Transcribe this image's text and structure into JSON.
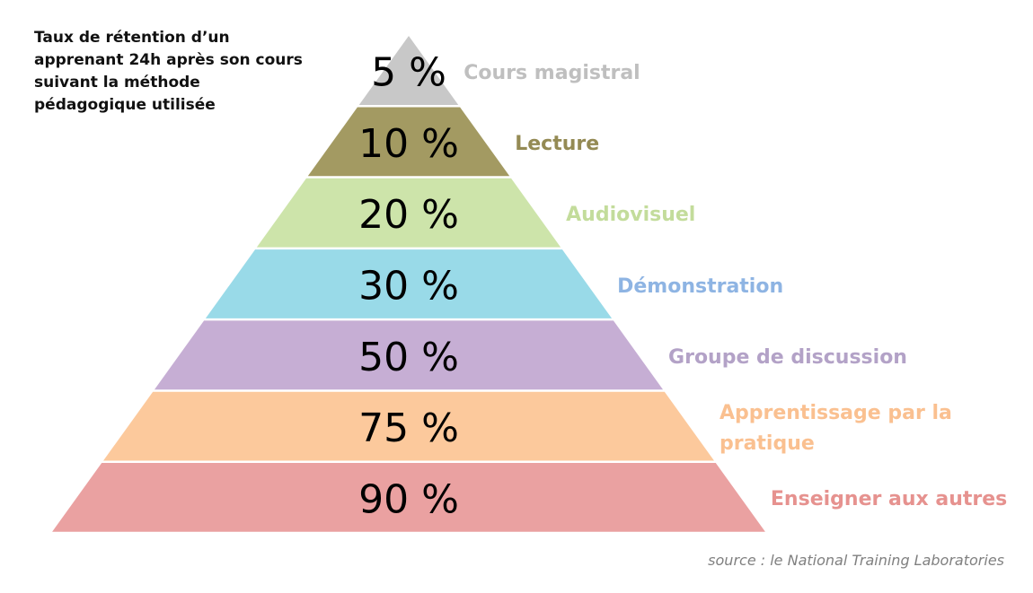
{
  "header": {
    "title": "Taux de rétention d’un apprenant 24h après son cours suivant la méthode pédagogique utilisée"
  },
  "levels": [
    {
      "value": "5 %",
      "label": "Cours magistral",
      "color": "#c8c8c8",
      "label_color": "#bfbfbf"
    },
    {
      "value": "10 %",
      "label": "Lecture",
      "color": "#a39a62",
      "label_color": "#948a54"
    },
    {
      "value": "20 %",
      "label": "Audiovisuel",
      "color": "#cde4aa",
      "label_color": "#c3dc9b"
    },
    {
      "value": "30 %",
      "label": "Démonstration",
      "color": "#99dae8",
      "label_color": "#8eb4e3"
    },
    {
      "value": "50 %",
      "label": "Groupe de discussion",
      "color": "#c6aed4",
      "label_color": "#b3a2c7"
    },
    {
      "value": "75 %",
      "label": "Apprentissage par la pratique",
      "color": "#fcc99c",
      "label_color": "#fac090"
    },
    {
      "value": "90 %",
      "label": "Enseigner aux autres",
      "color": "#eaa1a1",
      "label_color": "#e6928f"
    }
  ],
  "footer": {
    "source": "source : le National Training Laboratories"
  }
}
